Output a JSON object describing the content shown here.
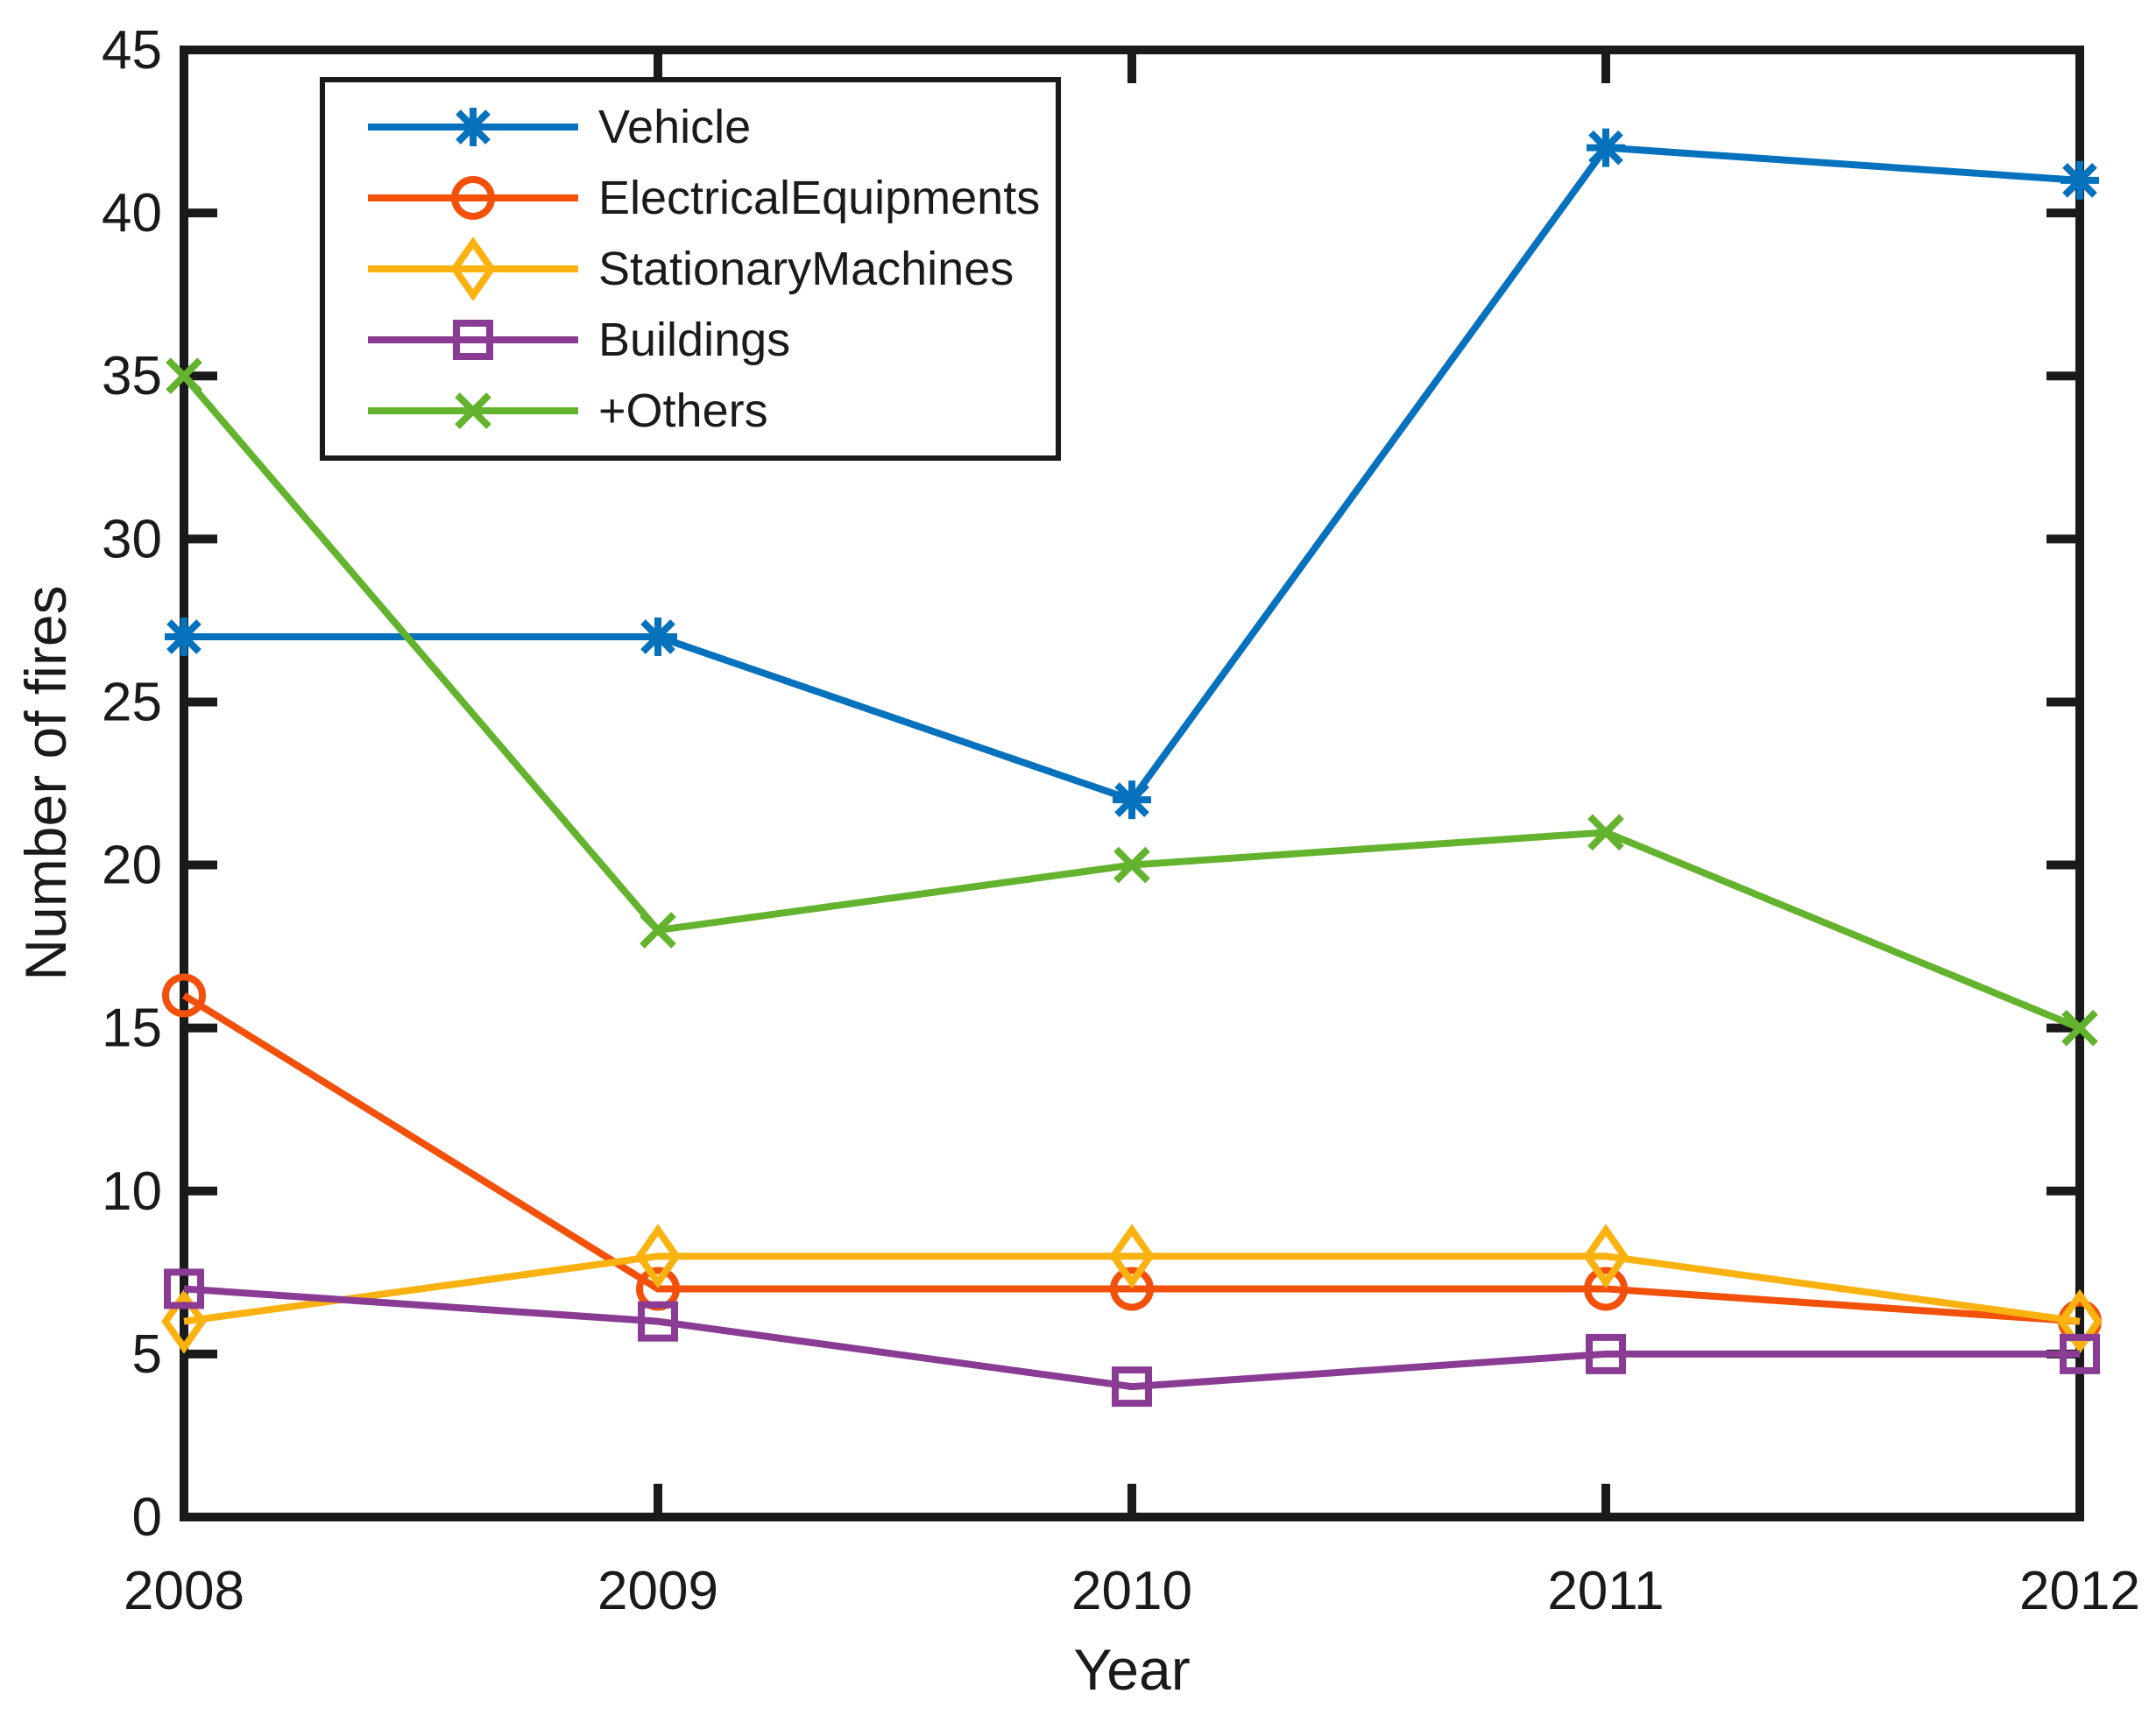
{
  "figure": {
    "background": "#ffffff",
    "axis_color": "#1a1a1a"
  },
  "chart_data": {
    "type": "line",
    "title": "",
    "xlabel": "Year",
    "ylabel": "Number of fires",
    "x": [
      2008,
      2009,
      2010,
      2011,
      2012
    ],
    "xlim": [
      2008,
      2012
    ],
    "ylim": [
      0,
      45
    ],
    "xticks": [
      2008,
      2009,
      2010,
      2011,
      2012
    ],
    "yticks": [
      0,
      5,
      10,
      15,
      20,
      25,
      30,
      35,
      40,
      45
    ],
    "grid": false,
    "box": true,
    "legend_position": "top-left",
    "series": [
      {
        "name": "Vehicle",
        "color": "#0672BD",
        "marker": "asterisk",
        "values": [
          27,
          27,
          22,
          42,
          41
        ]
      },
      {
        "name": "ElectricalEquipments",
        "color": "#F2500B",
        "marker": "circle",
        "values": [
          16,
          7,
          7,
          7,
          6
        ]
      },
      {
        "name": "StationaryMachines",
        "color": "#FAB211",
        "marker": "diamond",
        "values": [
          6,
          8,
          8,
          8,
          6
        ]
      },
      {
        "name": "Buildings",
        "color": "#8A3B94",
        "marker": "square",
        "values": [
          7,
          6,
          4,
          5,
          5
        ]
      },
      {
        "name": "+Others",
        "color": "#63B32E",
        "marker": "x",
        "values": [
          35,
          18,
          20,
          21,
          15
        ]
      }
    ]
  }
}
